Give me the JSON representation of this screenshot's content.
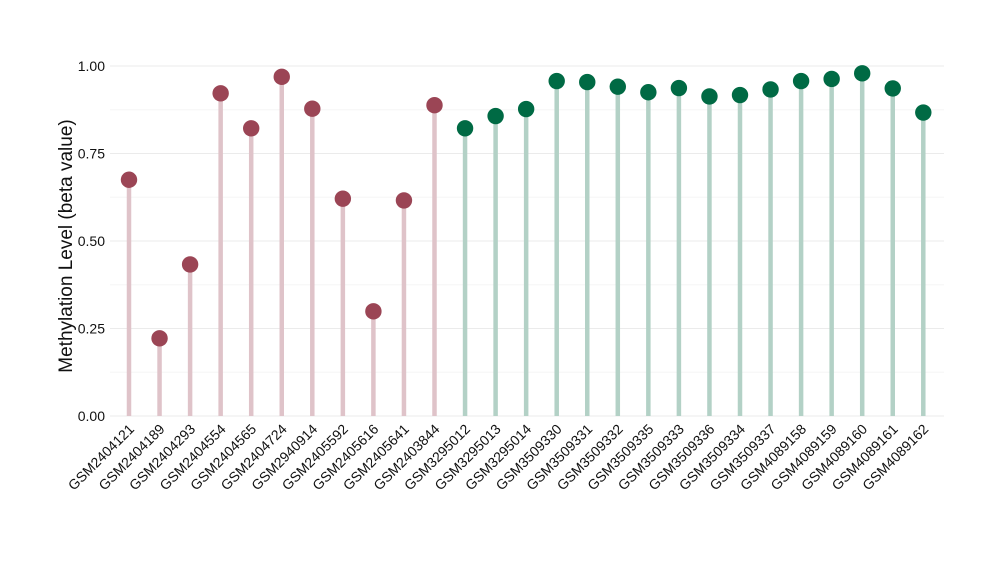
{
  "chart_data": {
    "type": "lollipop",
    "title": "",
    "xlabel": "",
    "ylabel": "Methylation Level (beta value)",
    "ylim": [
      0,
      1
    ],
    "yticks": [
      0,
      0.25,
      0.5,
      0.75,
      1
    ],
    "ytick_labels": [
      "0.00",
      "0.25",
      "0.50",
      "0.75",
      "1.00"
    ],
    "grid": "horizontal",
    "legend": "none",
    "groups": [
      {
        "color": "#9b4555",
        "stem_color": "#dfc3c9",
        "categories": [
          "GSM2404121",
          "GSM2404189",
          "GSM2404293",
          "GSM2404554",
          "GSM2404565",
          "GSM2404724",
          "GSM2940914",
          "GSM2405592",
          "GSM2405616",
          "GSM2405641",
          "GSM2403844"
        ],
        "values": [
          0.675,
          0.222,
          0.433,
          0.922,
          0.822,
          0.969,
          0.878,
          0.621,
          0.299,
          0.616,
          0.888
        ]
      },
      {
        "color": "#006a44",
        "stem_color": "#b3d1c6",
        "categories": [
          "GSM3295012",
          "GSM3295013",
          "GSM3295014",
          "GSM3509330",
          "GSM3509331",
          "GSM3509332",
          "GSM3509335",
          "GSM3509333",
          "GSM3509336",
          "GSM3509334",
          "GSM3509337",
          "GSM4089158",
          "GSM4089159",
          "GSM4089160",
          "GSM4089161",
          "GSM4089162"
        ],
        "values": [
          0.822,
          0.857,
          0.877,
          0.957,
          0.954,
          0.941,
          0.925,
          0.937,
          0.913,
          0.917,
          0.933,
          0.957,
          0.963,
          0.979,
          0.936,
          0.867
        ]
      }
    ]
  }
}
